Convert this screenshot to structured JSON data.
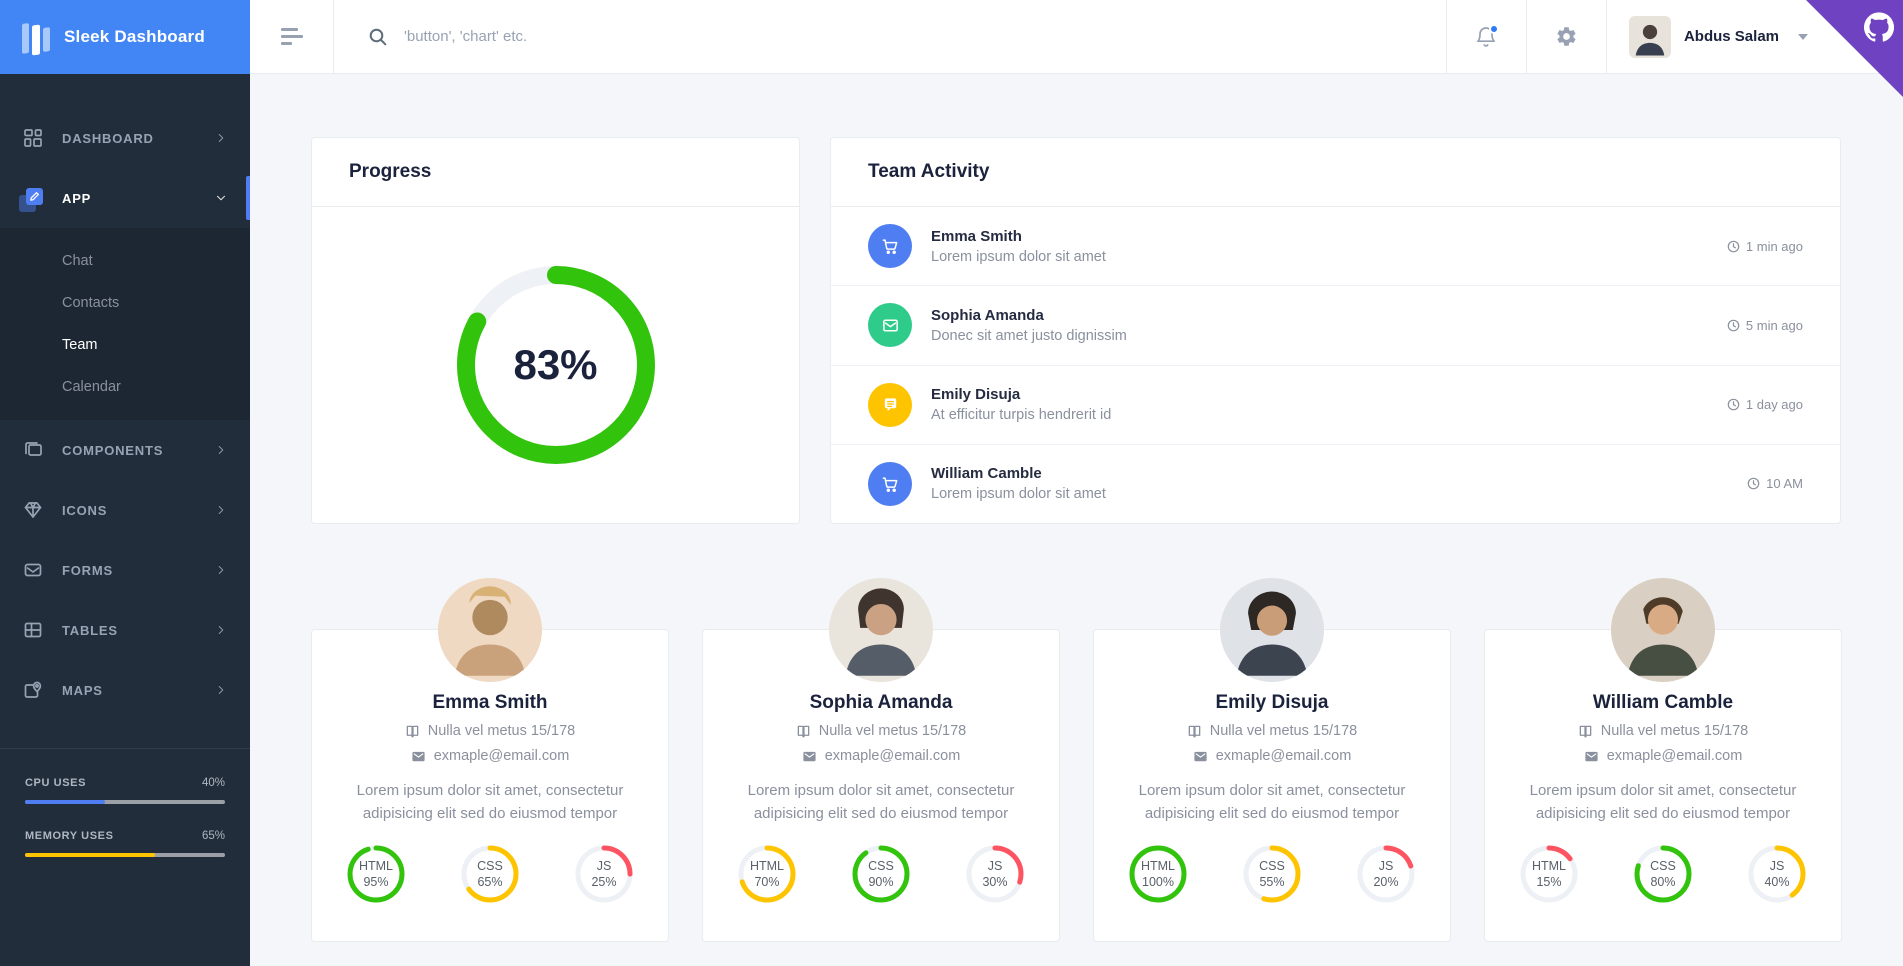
{
  "app_title": "Sleek Dashboard",
  "colors": {
    "primary": "#4e7ef1",
    "logo_bg": "#4285f4",
    "sidebar_bg": "#222d3c",
    "submenu_bg": "#1d2734",
    "green": "#32c30c",
    "emerald": "#2fcb8a",
    "yellow": "#fec400",
    "red": "#fe5461",
    "text_dark": "#1b223c",
    "text_gray": "#8a909d",
    "border": "#e8ecef",
    "github_corner": "#6f42c1",
    "main_bg": "#f4f6f9"
  },
  "sidebar": {
    "items": [
      {
        "label": "DASHBOARD",
        "icon": "grid-icon",
        "chevron": "right"
      },
      {
        "label": "APP",
        "icon": "edit-icon",
        "chevron": "down",
        "active": true
      },
      {
        "label": "COMPONENTS",
        "icon": "copy-icon",
        "chevron": "right"
      },
      {
        "label": "ICONS",
        "icon": "diamond-icon",
        "chevron": "right"
      },
      {
        "label": "FORMS",
        "icon": "mail-icon",
        "chevron": "right"
      },
      {
        "label": "TABLES",
        "icon": "table-icon",
        "chevron": "right"
      },
      {
        "label": "MAPS",
        "icon": "map-pin-icon",
        "chevron": "right"
      }
    ],
    "submenu": [
      {
        "label": "Chat"
      },
      {
        "label": "Contacts"
      },
      {
        "label": "Team",
        "active": true
      },
      {
        "label": "Calendar"
      }
    ],
    "usage": [
      {
        "label": "CPU USES",
        "value": "40%",
        "pct": 40,
        "color": "#4e7ef1"
      },
      {
        "label": "MEMORY USES",
        "value": "65%",
        "pct": 65,
        "color": "#fec400"
      }
    ]
  },
  "header": {
    "search_placeholder": "'button', 'chart' etc.",
    "user_name": "Abdus Salam",
    "icons": [
      "menu-icon",
      "search-icon",
      "bell-icon",
      "gear-icon",
      "github-icon"
    ]
  },
  "progress_card": {
    "title": "Progress",
    "value_label": "83%",
    "pct": 83,
    "color": "#32c30c"
  },
  "activity_card": {
    "title": "Team Activity",
    "items": [
      {
        "name": "Emma Smith",
        "text": "Lorem ipsum dolor sit amet",
        "time": "1 min ago",
        "icon": "cart-icon",
        "color": "#4e7ef1"
      },
      {
        "name": "Sophia Amanda",
        "text": "Donec sit amet justo dignissim",
        "time": "5 min ago",
        "icon": "mail-icon",
        "color": "#2fcb8a"
      },
      {
        "name": "Emily Disuja",
        "text": "At efficitur turpis hendrerit id",
        "time": "1 day ago",
        "icon": "message-icon",
        "color": "#fec400"
      },
      {
        "name": "William Camble",
        "text": "Lorem ipsum dolor sit amet",
        "time": "10 AM",
        "icon": "cart-icon",
        "color": "#4e7ef1"
      }
    ]
  },
  "team_cards": [
    {
      "name": "Emma Smith",
      "meta": "Nulla vel metus 15/178",
      "email": "exmaple@email.com",
      "bio": "Lorem ipsum dolor sit amet, consectetur adipisicing elit sed do eiusmod tempor",
      "skills": [
        {
          "label": "HTML",
          "value": "95%",
          "pct": 95,
          "color": "#32c30c"
        },
        {
          "label": "CSS",
          "value": "65%",
          "pct": 65,
          "color": "#fec400"
        },
        {
          "label": "JS",
          "value": "25%",
          "pct": 25,
          "color": "#fe5461"
        }
      ]
    },
    {
      "name": "Sophia Amanda",
      "meta": "Nulla vel metus 15/178",
      "email": "exmaple@email.com",
      "bio": "Lorem ipsum dolor sit amet, consectetur adipisicing elit sed do eiusmod tempor",
      "skills": [
        {
          "label": "HTML",
          "value": "70%",
          "pct": 70,
          "color": "#fec400"
        },
        {
          "label": "CSS",
          "value": "90%",
          "pct": 90,
          "color": "#32c30c"
        },
        {
          "label": "JS",
          "value": "30%",
          "pct": 30,
          "color": "#fe5461"
        }
      ]
    },
    {
      "name": "Emily Disuja",
      "meta": "Nulla vel metus 15/178",
      "email": "exmaple@email.com",
      "bio": "Lorem ipsum dolor sit amet, consectetur adipisicing elit sed do eiusmod tempor",
      "skills": [
        {
          "label": "HTML",
          "value": "100%",
          "pct": 100,
          "color": "#32c30c"
        },
        {
          "label": "CSS",
          "value": "55%",
          "pct": 55,
          "color": "#fec400"
        },
        {
          "label": "JS",
          "value": "20%",
          "pct": 20,
          "color": "#fe5461"
        }
      ]
    },
    {
      "name": "William Camble",
      "meta": "Nulla vel metus 15/178",
      "email": "exmaple@email.com",
      "bio": "Lorem ipsum dolor sit amet, consectetur adipisicing elit sed do eiusmod tempor",
      "skills": [
        {
          "label": "HTML",
          "value": "15%",
          "pct": 15,
          "color": "#fe5461"
        },
        {
          "label": "CSS",
          "value": "80%",
          "pct": 80,
          "color": "#32c30c"
        },
        {
          "label": "JS",
          "value": "40%",
          "pct": 40,
          "color": "#fec400"
        }
      ]
    }
  ]
}
